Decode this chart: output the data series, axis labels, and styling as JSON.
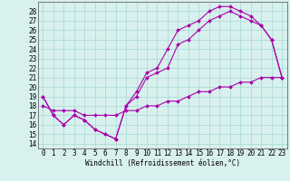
{
  "xlabel": "Windchill (Refroidissement éolien,°C)",
  "bg_color": "#d8f0ee",
  "grid_color": "#aedcd8",
  "line_color": "#aa00aa",
  "xlim": [
    -0.5,
    23.5
  ],
  "ylim": [
    13.5,
    29.0
  ],
  "xticks": [
    0,
    1,
    2,
    3,
    4,
    5,
    6,
    7,
    8,
    9,
    10,
    11,
    12,
    13,
    14,
    15,
    16,
    17,
    18,
    19,
    20,
    21,
    22,
    23
  ],
  "yticks": [
    14,
    15,
    16,
    17,
    18,
    19,
    20,
    21,
    22,
    23,
    24,
    25,
    26,
    27,
    28
  ],
  "line1_x": [
    0,
    1,
    2,
    3,
    4,
    5,
    6,
    7,
    8,
    9,
    10,
    11,
    12,
    13,
    14,
    15,
    16,
    17,
    18,
    19,
    20,
    21,
    22,
    23
  ],
  "line1_y": [
    19,
    17,
    16,
    17,
    16.5,
    15.5,
    15,
    14.5,
    18,
    19.5,
    21.5,
    22,
    24,
    26,
    26.5,
    27,
    28,
    28.5,
    28.5,
    28,
    27.5,
    26.5,
    25,
    21
  ],
  "line2_x": [
    0,
    1,
    2,
    3,
    4,
    5,
    6,
    7,
    8,
    9,
    10,
    11,
    12,
    13,
    14,
    15,
    16,
    17,
    18,
    19,
    20,
    21,
    22,
    23
  ],
  "line2_y": [
    19,
    17,
    16,
    17,
    16.5,
    15.5,
    15,
    14.5,
    18,
    19,
    21,
    21.5,
    22,
    24.5,
    25,
    26,
    27,
    27.5,
    28,
    27.5,
    27,
    26.5,
    25,
    21
  ],
  "line3_x": [
    0,
    1,
    2,
    3,
    4,
    5,
    6,
    7,
    8,
    9,
    10,
    11,
    12,
    13,
    14,
    15,
    16,
    17,
    18,
    19,
    20,
    21,
    22,
    23
  ],
  "line3_y": [
    18,
    17.5,
    17.5,
    17.5,
    17,
    17,
    17,
    17,
    17.5,
    17.5,
    18,
    18,
    18.5,
    18.5,
    19,
    19.5,
    19.5,
    20,
    20,
    20.5,
    20.5,
    21,
    21,
    21
  ],
  "tick_fontsize": 5.5,
  "xlabel_fontsize": 5.5,
  "marker_size": 2.0,
  "linewidth": 0.8
}
